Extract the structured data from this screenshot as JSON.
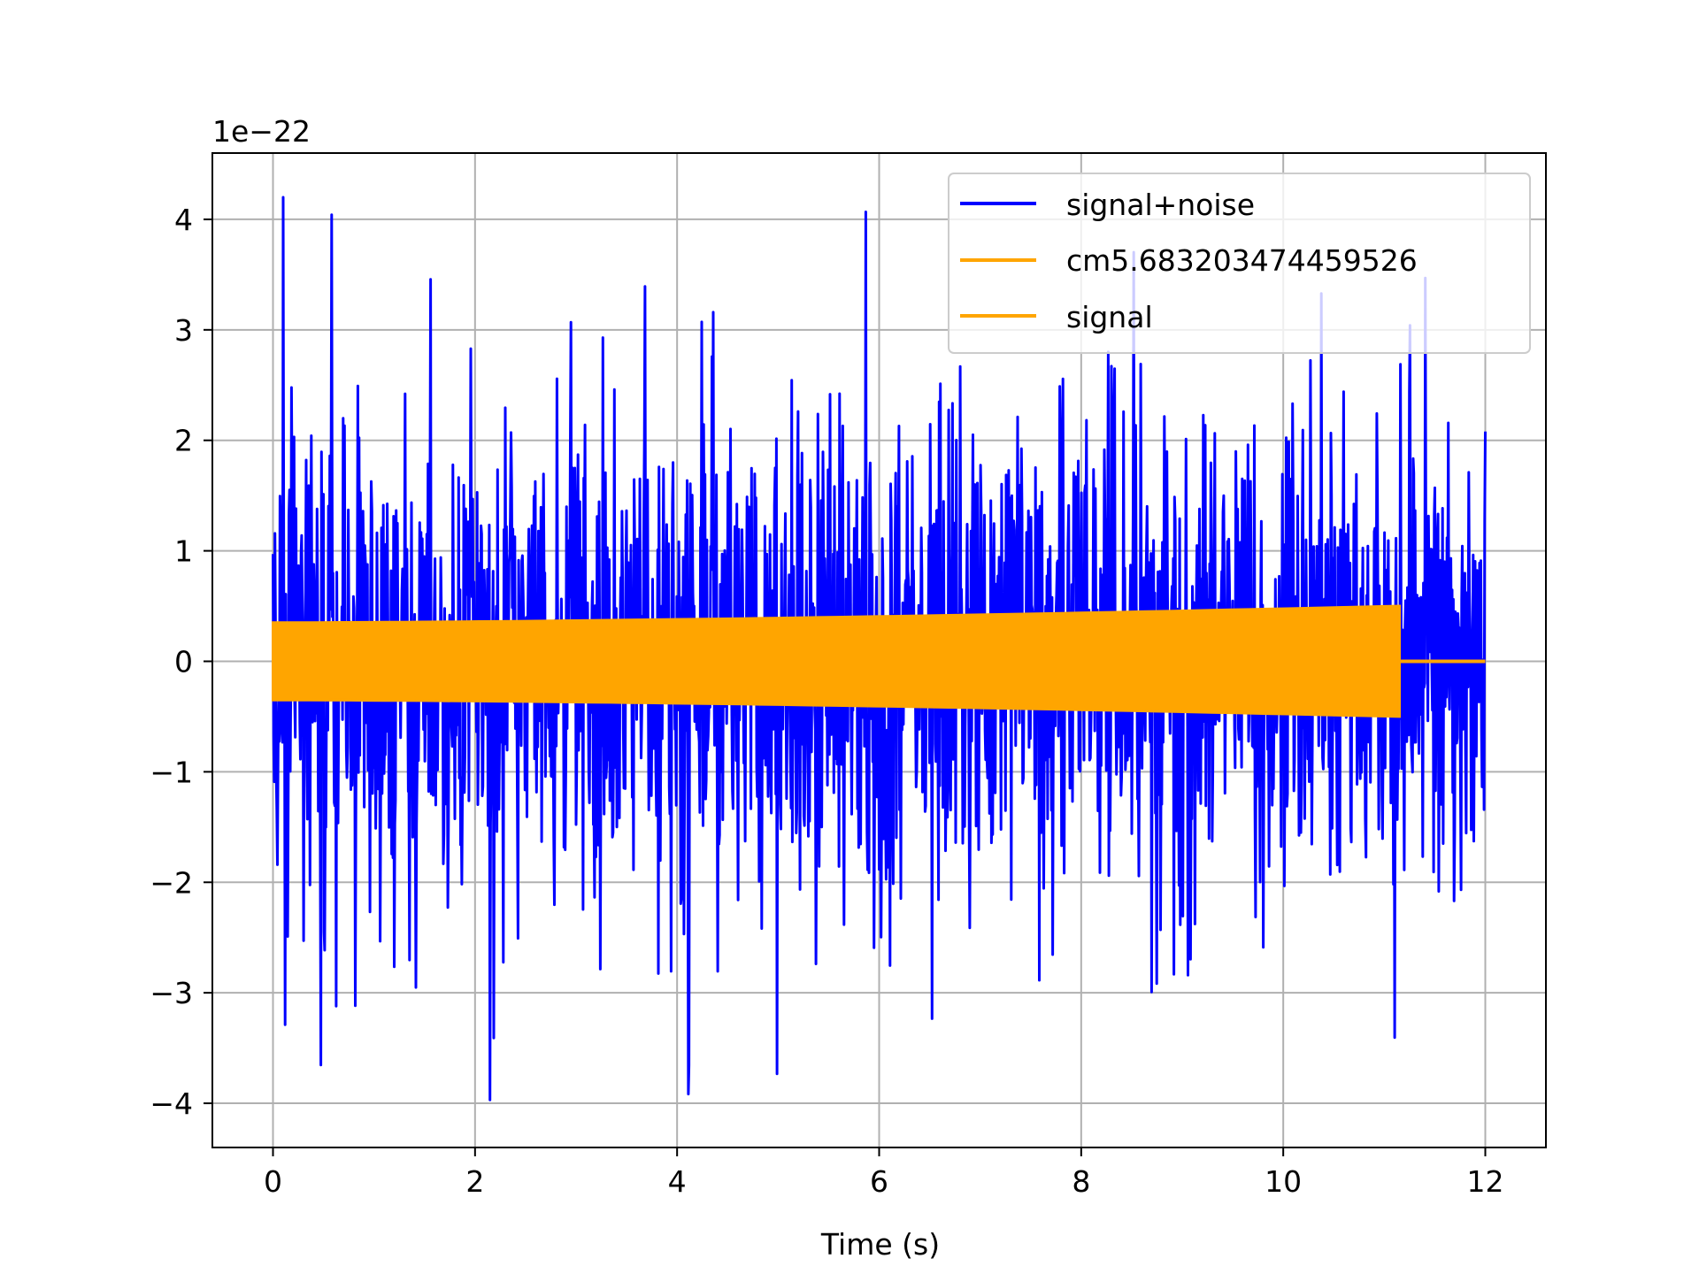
{
  "chart_data": {
    "type": "line",
    "title": "",
    "xlabel": "Time (s)",
    "ylabel": "",
    "y_offset_label": "1e−22",
    "xlim": [
      -0.6,
      12.6
    ],
    "ylim": [
      -4.4,
      4.6
    ],
    "y_scale_factor": 1e-22,
    "grid": true,
    "legend_position": "upper right",
    "x_ticks": [
      0,
      2,
      4,
      6,
      8,
      10,
      12
    ],
    "x_tick_labels": [
      "0",
      "2",
      "4",
      "6",
      "8",
      "10",
      "12"
    ],
    "y_ticks": [
      -4,
      -3,
      -2,
      -1,
      0,
      1,
      2,
      3,
      4
    ],
    "y_tick_labels": [
      "−4",
      "−3",
      "−2",
      "−1",
      "0",
      "1",
      "2",
      "3",
      "4"
    ],
    "series": [
      {
        "name": "signal+noise",
        "color": "#0000ff",
        "x_range": [
          0,
          12
        ],
        "typical_amplitude": 1.1,
        "max": 4.2,
        "min": -3.97
      },
      {
        "name": "cm5.683203474459526",
        "color": "#ffa500",
        "x_range": [
          0,
          11.15
        ],
        "envelope_start": 0.35,
        "envelope_end": 0.5,
        "after_end": 0
      },
      {
        "name": "signal",
        "color": "#ffa500",
        "x_range": [
          0,
          12
        ],
        "envelope_start": 0.35,
        "envelope_end": 0.5,
        "signal_end": 11.15,
        "after_end": 0
      }
    ]
  }
}
